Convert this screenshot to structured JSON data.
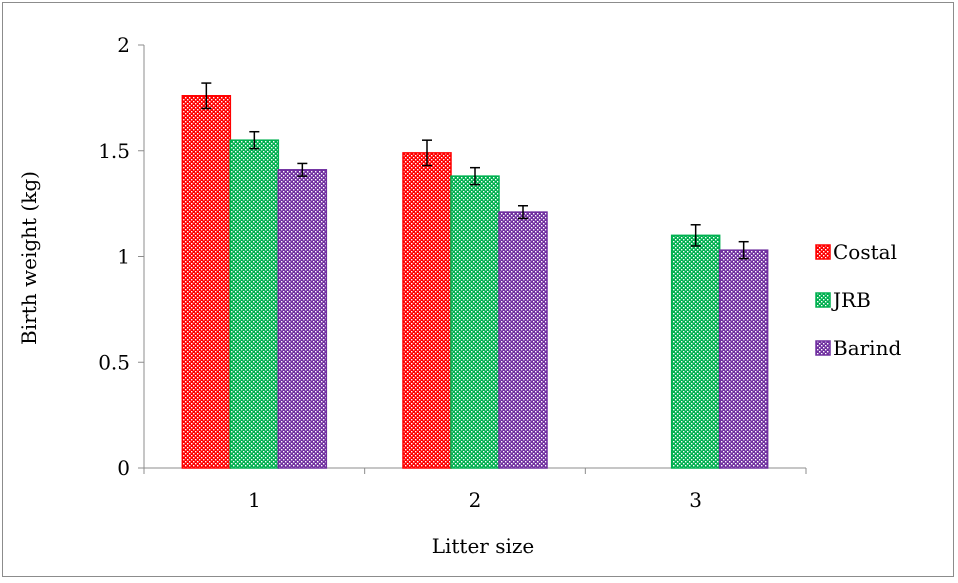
{
  "chart_data": {
    "type": "bar",
    "title": "",
    "xlabel": "Litter size",
    "ylabel": "Birth weight (kg)",
    "ylim": [
      0,
      2
    ],
    "yticks": [
      "0",
      "0.5",
      "1",
      "1.5",
      "2"
    ],
    "categories": [
      "1",
      "2",
      "3"
    ],
    "series": [
      {
        "name": "Costal",
        "color": "#ff0000",
        "values": [
          1.76,
          1.49,
          0
        ],
        "errors": [
          0.06,
          0.06,
          0
        ]
      },
      {
        "name": "JRB",
        "color": "#00b050",
        "values": [
          1.55,
          1.38,
          1.1
        ],
        "errors": [
          0.04,
          0.04,
          0.05
        ]
      },
      {
        "name": "Barind",
        "color": "#7030a0",
        "values": [
          1.41,
          1.21,
          1.03
        ],
        "errors": [
          0.03,
          0.03,
          0.04
        ]
      }
    ],
    "legend_position": "right",
    "grid": false,
    "error_bars": true,
    "pattern": "checkered"
  }
}
